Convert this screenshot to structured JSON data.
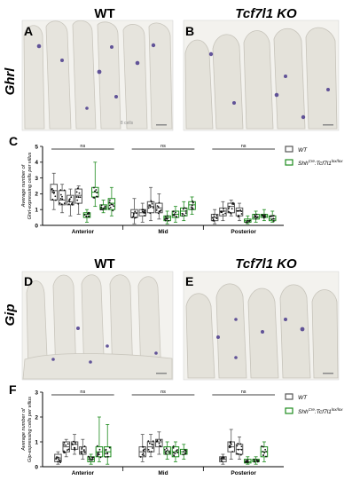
{
  "header_top": {
    "wt": "WT",
    "ko": "Tcf7l1 KO"
  },
  "header_bottom": {
    "wt": "WT",
    "ko": "Tcf7l1 KO"
  },
  "row_labels": {
    "top": "Ghrl",
    "bottom": "Gip"
  },
  "panel_letters": {
    "a": "A",
    "b": "B",
    "c": "C",
    "d": "D",
    "e": "E",
    "f": "F"
  },
  "micrograph_caption": "8 cells",
  "legend": {
    "wt": "WT",
    "mut_prefix": "Shh",
    "mut_sup1": "Cre",
    "mut_mid": ":Tcf7l1",
    "mut_sup2": "lox/lox"
  },
  "colors": {
    "wt_box": "#555555",
    "mut_box": "#1e8c1e",
    "stain": "#4a3a8c",
    "tissue": "#eeeeea"
  },
  "chart_data": [
    {
      "type": "box",
      "panel": "C",
      "ylabel_line1": "Average number of",
      "ylabel_line2": "Ghrl-expressing  cells per villus",
      "ylim": [
        0,
        5
      ],
      "yticks": [
        "0",
        "1",
        "2",
        "3",
        "4",
        "5"
      ],
      "categories": [
        "Anterior",
        "Mid",
        "Posterior"
      ],
      "significance": [
        "ns",
        "ns",
        "ns"
      ],
      "series": [
        {
          "name": "WT",
          "boxes": [
            [
              [
                1.0,
                1.6,
                2.2,
                2.6,
                3.3
              ],
              [
                0.8,
                1.3,
                1.6,
                2.2,
                2.6
              ],
              [
                0.6,
                1.3,
                1.5,
                1.9,
                2.3
              ],
              [
                0.7,
                1.4,
                1.9,
                2.3,
                2.5
              ]
            ],
            [
              [
                0.1,
                0.5,
                0.8,
                1.0,
                1.7
              ],
              [
                0.2,
                0.6,
                0.8,
                1.0,
                1.4
              ],
              [
                0.3,
                0.8,
                1.2,
                1.5,
                2.4
              ],
              [
                0.4,
                0.8,
                1.1,
                1.4,
                2.0
              ]
            ],
            [
              [
                0.1,
                0.3,
                0.5,
                0.7,
                1.0
              ],
              [
                0.3,
                0.6,
                0.9,
                1.1,
                1.5
              ],
              [
                0.6,
                0.8,
                1.2,
                1.4,
                1.6
              ],
              [
                0.3,
                0.6,
                0.9,
                1.1,
                1.4
              ]
            ]
          ]
        },
        {
          "name": "Shh Cre:Tcf7l1 lox/lox",
          "boxes": [
            [
              [
                0.2,
                0.5,
                0.7,
                0.8,
                1.0
              ],
              [
                1.2,
                1.8,
                2.1,
                2.4,
                4.0
              ],
              [
                0.8,
                1.0,
                1.1,
                1.3,
                1.6
              ],
              [
                0.6,
                1.0,
                1.4,
                1.7,
                2.4
              ]
            ],
            [
              [
                0.1,
                0.3,
                0.5,
                0.6,
                0.9
              ],
              [
                0.2,
                0.5,
                0.7,
                0.9,
                1.2
              ],
              [
                0.3,
                0.6,
                0.9,
                1.1,
                1.5
              ],
              [
                0.7,
                1.0,
                1.3,
                1.5,
                1.8
              ]
            ],
            [
              [
                0.1,
                0.2,
                0.3,
                0.4,
                0.6
              ],
              [
                0.2,
                0.4,
                0.5,
                0.7,
                0.9
              ],
              [
                0.3,
                0.5,
                0.6,
                0.7,
                1.0
              ],
              [
                0.2,
                0.3,
                0.4,
                0.6,
                0.9
              ]
            ]
          ]
        }
      ]
    },
    {
      "type": "box",
      "panel": "F",
      "ylabel_line1": "Average number of",
      "ylabel_line2": "Gip-expressing  cells per villus",
      "ylim": [
        0,
        3
      ],
      "yticks": [
        "0",
        "1",
        "2",
        "3"
      ],
      "categories": [
        "Anterior",
        "Mid",
        "Posterior"
      ],
      "significance": [
        "ns",
        "ns",
        "ns"
      ],
      "series": [
        {
          "name": "WT",
          "boxes": [
            [
              [
                0.1,
                0.2,
                0.35,
                0.5,
                0.6
              ],
              [
                0.4,
                0.6,
                0.8,
                1.0,
                1.1
              ],
              [
                0.5,
                0.7,
                0.9,
                1.0,
                1.3
              ],
              [
                0.3,
                0.5,
                0.6,
                0.8,
                1.1
              ]
            ],
            [
              [
                0.2,
                0.4,
                0.6,
                0.8,
                1.3
              ],
              [
                0.4,
                0.6,
                0.8,
                1.0,
                1.3
              ],
              [
                0.5,
                0.8,
                1.0,
                1.1,
                1.4
              ],
              [
                0,
                0,
                0,
                0,
                0
              ]
            ],
            [
              [
                0.1,
                0.2,
                0.3,
                0.4,
                0.5
              ],
              [
                0.3,
                0.6,
                0.8,
                1.0,
                1.5
              ],
              [
                0.3,
                0.5,
                0.7,
                0.9,
                1.2
              ],
              [
                0,
                0,
                0,
                0,
                0
              ]
            ]
          ]
        },
        {
          "name": "Shh Cre:Tcf7l1 lox/lox",
          "boxes": [
            [
              [
                0.1,
                0.2,
                0.3,
                0.4,
                0.5
              ],
              [
                0.2,
                0.4,
                0.6,
                0.8,
                2.0
              ],
              [
                0.1,
                0.4,
                0.6,
                0.8,
                1.7
              ],
              [
                0,
                0,
                0,
                0,
                0
              ]
            ],
            [
              [
                0.3,
                0.5,
                0.6,
                0.8,
                1.0
              ],
              [
                0.2,
                0.4,
                0.6,
                0.8,
                1.0
              ],
              [
                0.3,
                0.5,
                0.6,
                0.7,
                0.9
              ],
              [
                0,
                0,
                0,
                0,
                0
              ]
            ],
            [
              [
                0.1,
                0.15,
                0.2,
                0.3,
                0.4
              ],
              [
                0.1,
                0.2,
                0.25,
                0.3,
                0.4
              ],
              [
                0.2,
                0.4,
                0.6,
                0.8,
                1.0
              ],
              [
                0,
                0,
                0,
                0,
                0
              ]
            ]
          ]
        }
      ]
    }
  ]
}
